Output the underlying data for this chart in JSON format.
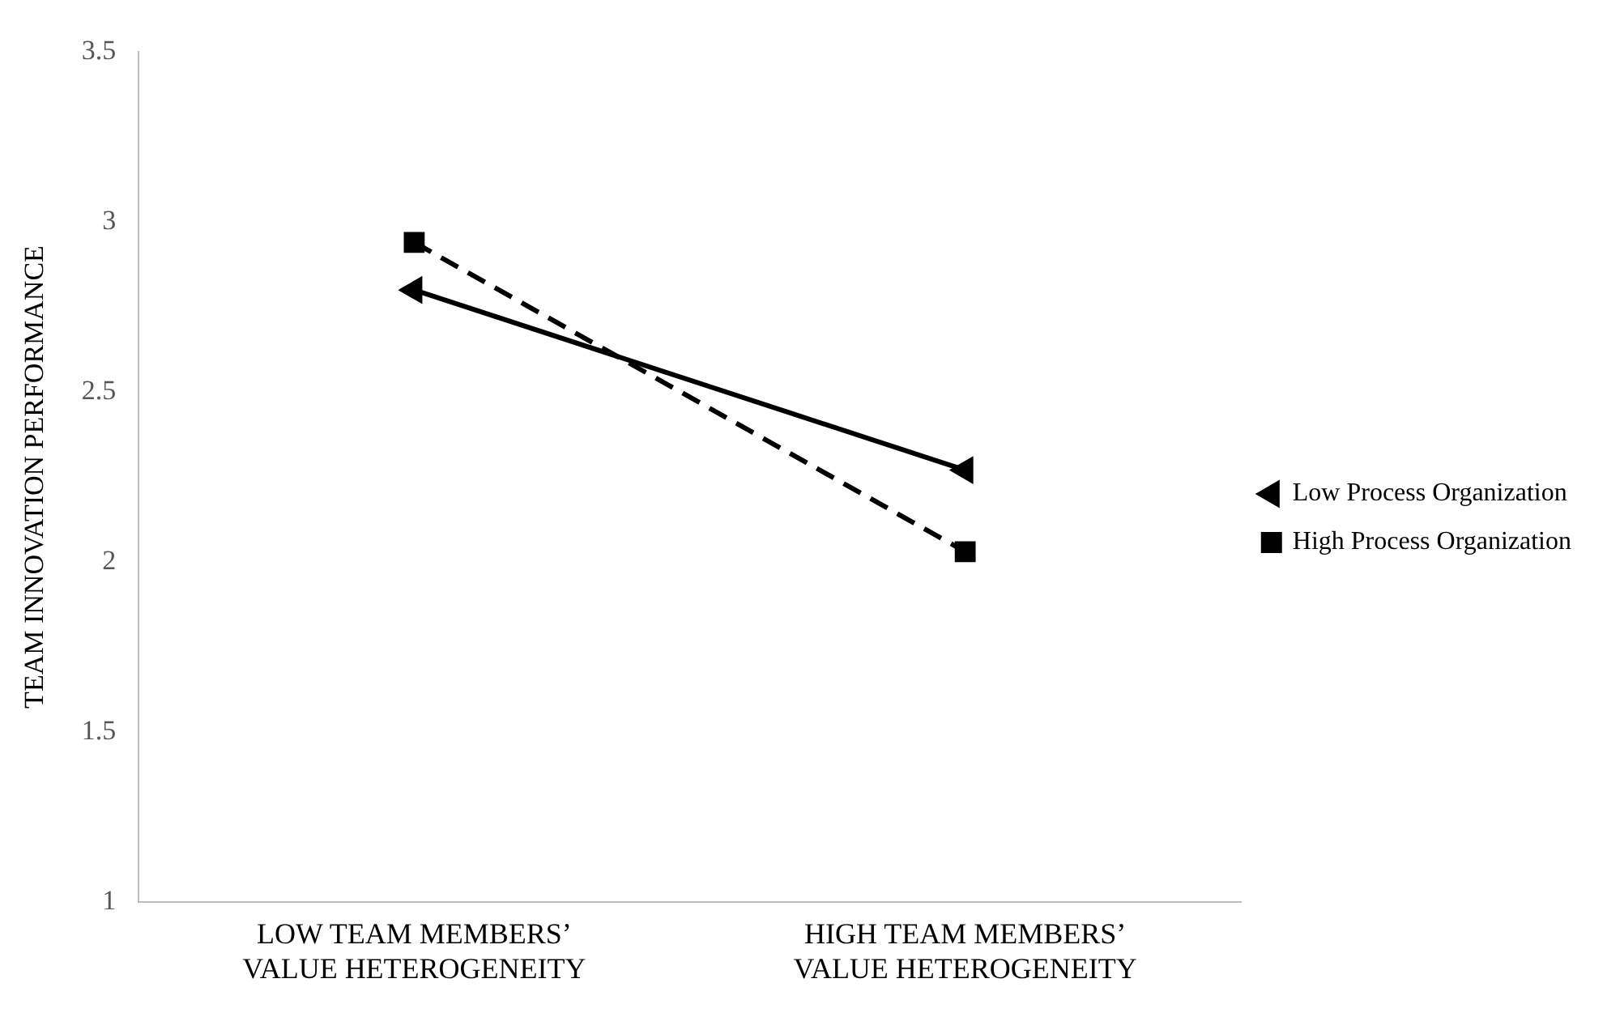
{
  "chart_data": {
    "type": "line",
    "ylabel": "TEAM INNOVATION PERFORMANCE",
    "categories": [
      "LOW TEAM MEMBERS’\nVALUE HETEROGENEITY",
      "HIGH TEAM MEMBERS’\nVALUE HETEROGENEITY"
    ],
    "series": [
      {
        "name": "Low Process Organization",
        "color": "#000000",
        "values": [
          2.8,
          2.27
        ],
        "marker": "triangle",
        "line_style": "solid"
      },
      {
        "name": "High Process Organization",
        "color": "#000000",
        "values": [
          2.94,
          2.03
        ],
        "marker": "square",
        "line_style": "dashed"
      }
    ],
    "ylim": [
      1,
      3.5
    ],
    "yticks": [
      1,
      1.5,
      2,
      2.5,
      3,
      3.5
    ],
    "grid": false,
    "legend": "right"
  }
}
